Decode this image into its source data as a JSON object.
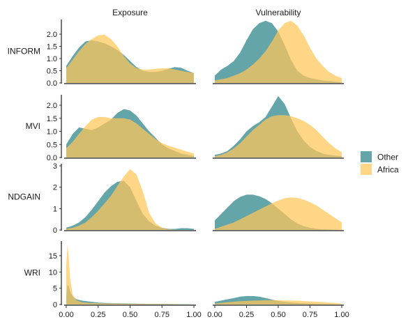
{
  "chart_data": {
    "type": "area",
    "chart_kind": "faceted-density",
    "columns": [
      "Exposure",
      "Vulnerability"
    ],
    "rows": [
      "INFORM",
      "MVI",
      "NDGAIN",
      "WRI"
    ],
    "x_ticks": [
      "0.00",
      "0.25",
      "0.50",
      "0.75",
      "1.00"
    ],
    "xlim": [
      0,
      1
    ],
    "row_ylim": {
      "INFORM": [
        0,
        2.6
      ],
      "MVI": [
        0,
        2.4
      ],
      "NDGAIN": [
        0,
        3.1
      ],
      "WRI": [
        0,
        19.5
      ]
    },
    "row_y_ticks": {
      "INFORM": [
        "0.0",
        "0.5",
        "1.0",
        "1.5",
        "2.0"
      ],
      "MVI": [
        "0.0",
        "0.5",
        "1.0",
        "1.5",
        "2.0"
      ],
      "NDGAIN": [
        "0",
        "1",
        "2",
        "3"
      ],
      "WRI": [
        "0",
        "5",
        "10",
        "15"
      ]
    },
    "legend": {
      "position": "right",
      "items": [
        {
          "name": "Other",
          "color": "#3d8f93"
        },
        {
          "name": "Africa",
          "color": "#ffc658"
        }
      ]
    },
    "grid": false,
    "panels": [
      {
        "row": "INFORM",
        "col": "Exposure",
        "x": [
          0,
          0.05,
          0.1,
          0.15,
          0.2,
          0.25,
          0.3,
          0.35,
          0.4,
          0.45,
          0.5,
          0.55,
          0.6,
          0.65,
          0.7,
          0.75,
          0.8,
          0.85,
          0.9,
          0.95,
          1.0
        ],
        "series": [
          {
            "name": "Other",
            "values": [
              0.7,
              1.1,
              1.45,
              1.7,
              1.75,
              1.7,
              1.62,
              1.5,
              1.35,
              1.15,
              0.9,
              0.65,
              0.5,
              0.45,
              0.45,
              0.5,
              0.58,
              0.65,
              0.62,
              0.5,
              0.4
            ]
          },
          {
            "name": "Africa",
            "values": [
              0.6,
              0.95,
              1.3,
              1.6,
              1.8,
              1.95,
              1.98,
              1.8,
              1.5,
              1.1,
              0.8,
              0.6,
              0.55,
              0.55,
              0.58,
              0.6,
              0.6,
              0.55,
              0.5,
              0.45,
              0.4
            ]
          }
        ]
      },
      {
        "row": "INFORM",
        "col": "Vulnerability",
        "x": [
          0,
          0.05,
          0.1,
          0.15,
          0.2,
          0.25,
          0.3,
          0.35,
          0.4,
          0.45,
          0.5,
          0.55,
          0.6,
          0.65,
          0.7,
          0.75,
          0.8,
          0.85,
          0.9,
          0.95,
          1.0
        ],
        "series": [
          {
            "name": "Other",
            "values": [
              0.3,
              0.55,
              0.7,
              0.9,
              1.25,
              1.75,
              2.2,
              2.45,
              2.55,
              2.45,
              2.1,
              1.55,
              0.95,
              0.5,
              0.3,
              0.2,
              0.15,
              0.1,
              0.07,
              0.05,
              0.03
            ]
          },
          {
            "name": "Africa",
            "values": [
              0.1,
              0.15,
              0.2,
              0.3,
              0.4,
              0.55,
              0.75,
              1.0,
              1.3,
              1.7,
              2.15,
              2.45,
              2.55,
              2.35,
              1.95,
              1.45,
              1.0,
              0.7,
              0.45,
              0.3,
              0.2
            ]
          }
        ]
      },
      {
        "row": "MVI",
        "col": "Exposure",
        "x": [
          0,
          0.05,
          0.1,
          0.15,
          0.2,
          0.25,
          0.3,
          0.35,
          0.4,
          0.45,
          0.5,
          0.55,
          0.6,
          0.65,
          0.7,
          0.75,
          0.8,
          0.85,
          0.9,
          0.95,
          1.0
        ],
        "series": [
          {
            "name": "Other",
            "values": [
              0.5,
              0.9,
              1.15,
              1.1,
              1.05,
              1.15,
              1.3,
              1.45,
              1.7,
              1.85,
              1.8,
              1.6,
              1.3,
              1.0,
              0.75,
              0.5,
              0.35,
              0.25,
              0.15,
              0.1,
              0.05
            ]
          },
          {
            "name": "Africa",
            "values": [
              0.35,
              0.6,
              0.9,
              1.2,
              1.45,
              1.55,
              1.55,
              1.5,
              1.5,
              1.5,
              1.45,
              1.3,
              1.1,
              0.9,
              0.7,
              0.55,
              0.45,
              0.38,
              0.3,
              0.22,
              0.15
            ]
          }
        ]
      },
      {
        "row": "MVI",
        "col": "Vulnerability",
        "x": [
          0,
          0.05,
          0.1,
          0.15,
          0.2,
          0.25,
          0.3,
          0.35,
          0.4,
          0.45,
          0.5,
          0.55,
          0.6,
          0.65,
          0.7,
          0.75,
          0.8,
          0.85,
          0.9,
          0.95,
          1.0
        ],
        "series": [
          {
            "name": "Other",
            "values": [
              0.1,
              0.15,
              0.25,
              0.45,
              0.7,
              1.0,
              1.2,
              1.35,
              1.55,
              1.95,
              2.35,
              2.05,
              1.5,
              1.0,
              0.65,
              0.4,
              0.25,
              0.15,
              0.1,
              0.07,
              0.05
            ]
          },
          {
            "name": "Africa",
            "values": [
              0.05,
              0.1,
              0.2,
              0.35,
              0.55,
              0.8,
              1.05,
              1.25,
              1.45,
              1.58,
              1.62,
              1.62,
              1.58,
              1.5,
              1.4,
              1.25,
              1.05,
              0.8,
              0.55,
              0.35,
              0.2
            ]
          }
        ]
      },
      {
        "row": "NDGAIN",
        "col": "Exposure",
        "x": [
          0,
          0.05,
          0.1,
          0.15,
          0.2,
          0.25,
          0.3,
          0.35,
          0.4,
          0.45,
          0.5,
          0.55,
          0.6,
          0.65,
          0.7,
          0.75,
          0.8,
          0.85,
          0.9,
          0.95,
          1.0
        ],
        "series": [
          {
            "name": "Other",
            "values": [
              0.1,
              0.2,
              0.35,
              0.6,
              0.95,
              1.35,
              1.75,
              2.05,
              2.25,
              2.3,
              2.0,
              1.35,
              0.75,
              0.4,
              0.2,
              0.1,
              0.05,
              0.05,
              0.08,
              0.08,
              0.05
            ]
          },
          {
            "name": "Africa",
            "values": [
              0.05,
              0.1,
              0.2,
              0.35,
              0.6,
              0.9,
              1.25,
              1.6,
              2.05,
              2.5,
              2.85,
              2.6,
              1.8,
              0.8,
              0.3,
              0.1,
              0.03,
              0.01,
              0.0,
              0.0,
              0.0
            ]
          }
        ]
      },
      {
        "row": "NDGAIN",
        "col": "Vulnerability",
        "x": [
          0,
          0.05,
          0.1,
          0.15,
          0.2,
          0.25,
          0.3,
          0.35,
          0.4,
          0.45,
          0.5,
          0.55,
          0.6,
          0.65,
          0.7,
          0.75,
          0.8,
          0.85,
          0.9,
          0.95,
          1.0
        ],
        "series": [
          {
            "name": "Other",
            "values": [
              0.45,
              0.75,
              1.05,
              1.35,
              1.55,
              1.65,
              1.65,
              1.58,
              1.45,
              1.25,
              1.0,
              0.75,
              0.5,
              0.3,
              0.18,
              0.1,
              0.05,
              0.03,
              0.02,
              0.01,
              0.0
            ]
          },
          {
            "name": "Africa",
            "values": [
              0.05,
              0.15,
              0.25,
              0.35,
              0.5,
              0.65,
              0.8,
              0.95,
              1.1,
              1.25,
              1.38,
              1.48,
              1.52,
              1.5,
              1.42,
              1.3,
              1.15,
              0.95,
              0.75,
              0.55,
              0.35
            ]
          }
        ]
      },
      {
        "row": "WRI",
        "col": "Exposure",
        "x": [
          0,
          0.01,
          0.02,
          0.03,
          0.05,
          0.08,
          0.12,
          0.18,
          0.25,
          0.35,
          0.5,
          0.65,
          0.8,
          0.9,
          1.0
        ],
        "series": [
          {
            "name": "Other",
            "values": [
              3.0,
              6.0,
              5.5,
              4.0,
              2.5,
              1.6,
              1.2,
              0.9,
              0.6,
              0.4,
              0.3,
              0.2,
              0.15,
              0.1,
              0.05
            ]
          },
          {
            "name": "Africa",
            "values": [
              12.0,
              18.3,
              14.0,
              8.0,
              3.0,
              1.3,
              0.7,
              0.5,
              0.4,
              0.3,
              0.2,
              0.15,
              0.1,
              0.05,
              0.02
            ]
          }
        ]
      },
      {
        "row": "WRI",
        "col": "Vulnerability",
        "x": [
          0,
          0.05,
          0.1,
          0.15,
          0.2,
          0.25,
          0.3,
          0.35,
          0.4,
          0.45,
          0.5,
          0.55,
          0.6,
          0.65,
          0.7,
          0.75,
          0.8,
          0.85,
          0.9,
          0.95,
          1.0
        ],
        "series": [
          {
            "name": "Other",
            "values": [
              0.8,
              1.2,
              1.6,
              2.0,
              2.4,
              2.6,
              2.6,
              2.4,
              2.0,
              1.5,
              1.1,
              0.8,
              0.6,
              0.45,
              0.35,
              0.25,
              0.2,
              0.15,
              0.1,
              0.05,
              0.02
            ]
          },
          {
            "name": "Africa",
            "values": [
              0.3,
              0.5,
              0.7,
              0.85,
              1.0,
              1.1,
              1.2,
              1.25,
              1.3,
              1.3,
              1.3,
              1.25,
              1.2,
              1.15,
              1.05,
              0.95,
              0.85,
              0.75,
              0.6,
              0.45,
              0.3
            ]
          }
        ]
      }
    ]
  }
}
